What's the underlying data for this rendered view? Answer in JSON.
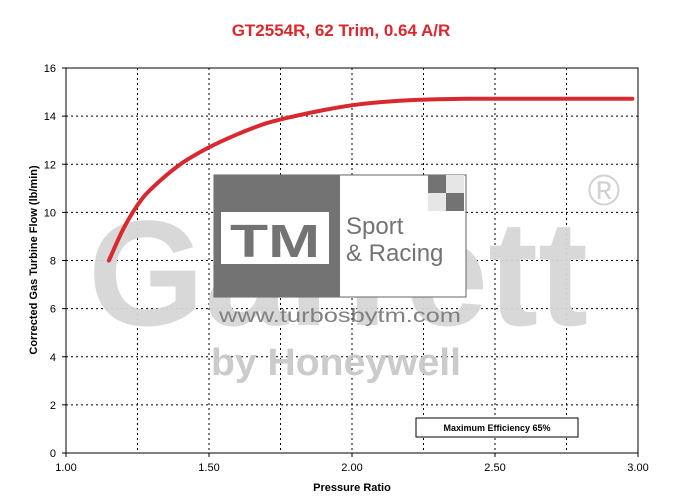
{
  "chart_data": {
    "type": "line",
    "title": "GT2554R, 62 Trim, 0.64 A/R",
    "xlabel": "Pressure Ratio",
    "ylabel": "Corrected Gas Turbine Flow (lb/min)",
    "xlim": [
      1.0,
      3.0
    ],
    "ylim": [
      0,
      16
    ],
    "x_ticks": [
      "1.00",
      "1.50",
      "2.00",
      "2.50",
      "3.00"
    ],
    "y_ticks": [
      "0",
      "2",
      "4",
      "6",
      "8",
      "10",
      "12",
      "14",
      "16"
    ],
    "grid": true,
    "series": [
      {
        "color": "#d9282f",
        "x": [
          1.15,
          1.2,
          1.25,
          1.3,
          1.4,
          1.5,
          1.6,
          1.7,
          1.8,
          1.9,
          2.0,
          2.1,
          2.2,
          2.3,
          2.4,
          2.5,
          2.6,
          2.7,
          2.8,
          2.9,
          2.98
        ],
        "y": [
          8.0,
          9.3,
          10.3,
          11.0,
          12.0,
          12.7,
          13.25,
          13.7,
          14.0,
          14.25,
          14.45,
          14.58,
          14.66,
          14.7,
          14.72,
          14.72,
          14.72,
          14.72,
          14.72,
          14.72,
          14.72
        ]
      }
    ],
    "annotation": "Maximum Efficiency 65%"
  },
  "watermark": {
    "brand": "Garrett",
    "registered": "®",
    "byline": "by Honeywell",
    "logo_mark": "TM",
    "logo_line1": "Sport",
    "logo_line2": "& Racing",
    "url": "www.turbosbytm.com"
  }
}
